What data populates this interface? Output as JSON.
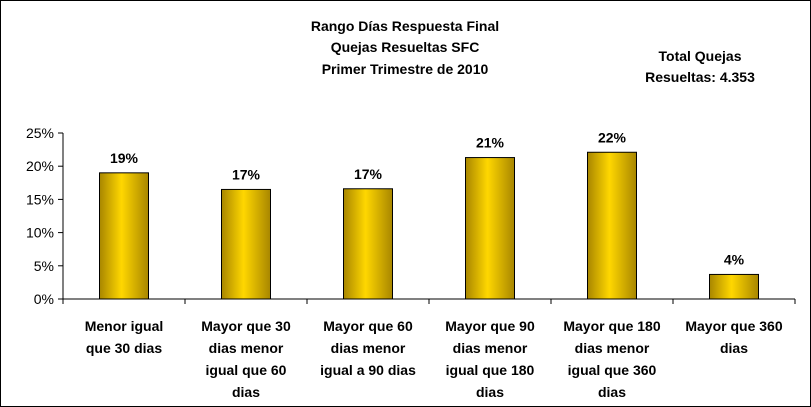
{
  "chart_data": {
    "type": "bar",
    "title_lines": [
      "Rango Días Respuesta Final",
      "Quejas Resueltas SFC",
      "Primer Trimestre de 2010"
    ],
    "annotation_lines": [
      "Total Quejas",
      "Resueltas: 4.353"
    ],
    "categories": [
      [
        "Menor igual",
        "que 30 dias"
      ],
      [
        "Mayor que 30",
        "dias menor",
        "igual que 60",
        "dias"
      ],
      [
        "Mayor que 60",
        "dias menor",
        "igual a 90 dias"
      ],
      [
        "Mayor que 90",
        "dias menor",
        "igual que 180",
        "dias"
      ],
      [
        "Mayor que 180",
        "dias menor",
        "igual que 360",
        "dias"
      ],
      [
        "Mayor que 360",
        "dias"
      ]
    ],
    "values": [
      0.19,
      0.165,
      0.166,
      0.213,
      0.221,
      0.037
    ],
    "data_labels": [
      "19%",
      "17%",
      "17%",
      "21%",
      "22%",
      "4%"
    ],
    "ylim": [
      0,
      0.25
    ],
    "yticks": [
      "0%",
      "5%",
      "10%",
      "15%",
      "20%",
      "25%"
    ],
    "bar_color_dark": "#a88600",
    "bar_color_light": "#ffd700",
    "grid": false
  }
}
